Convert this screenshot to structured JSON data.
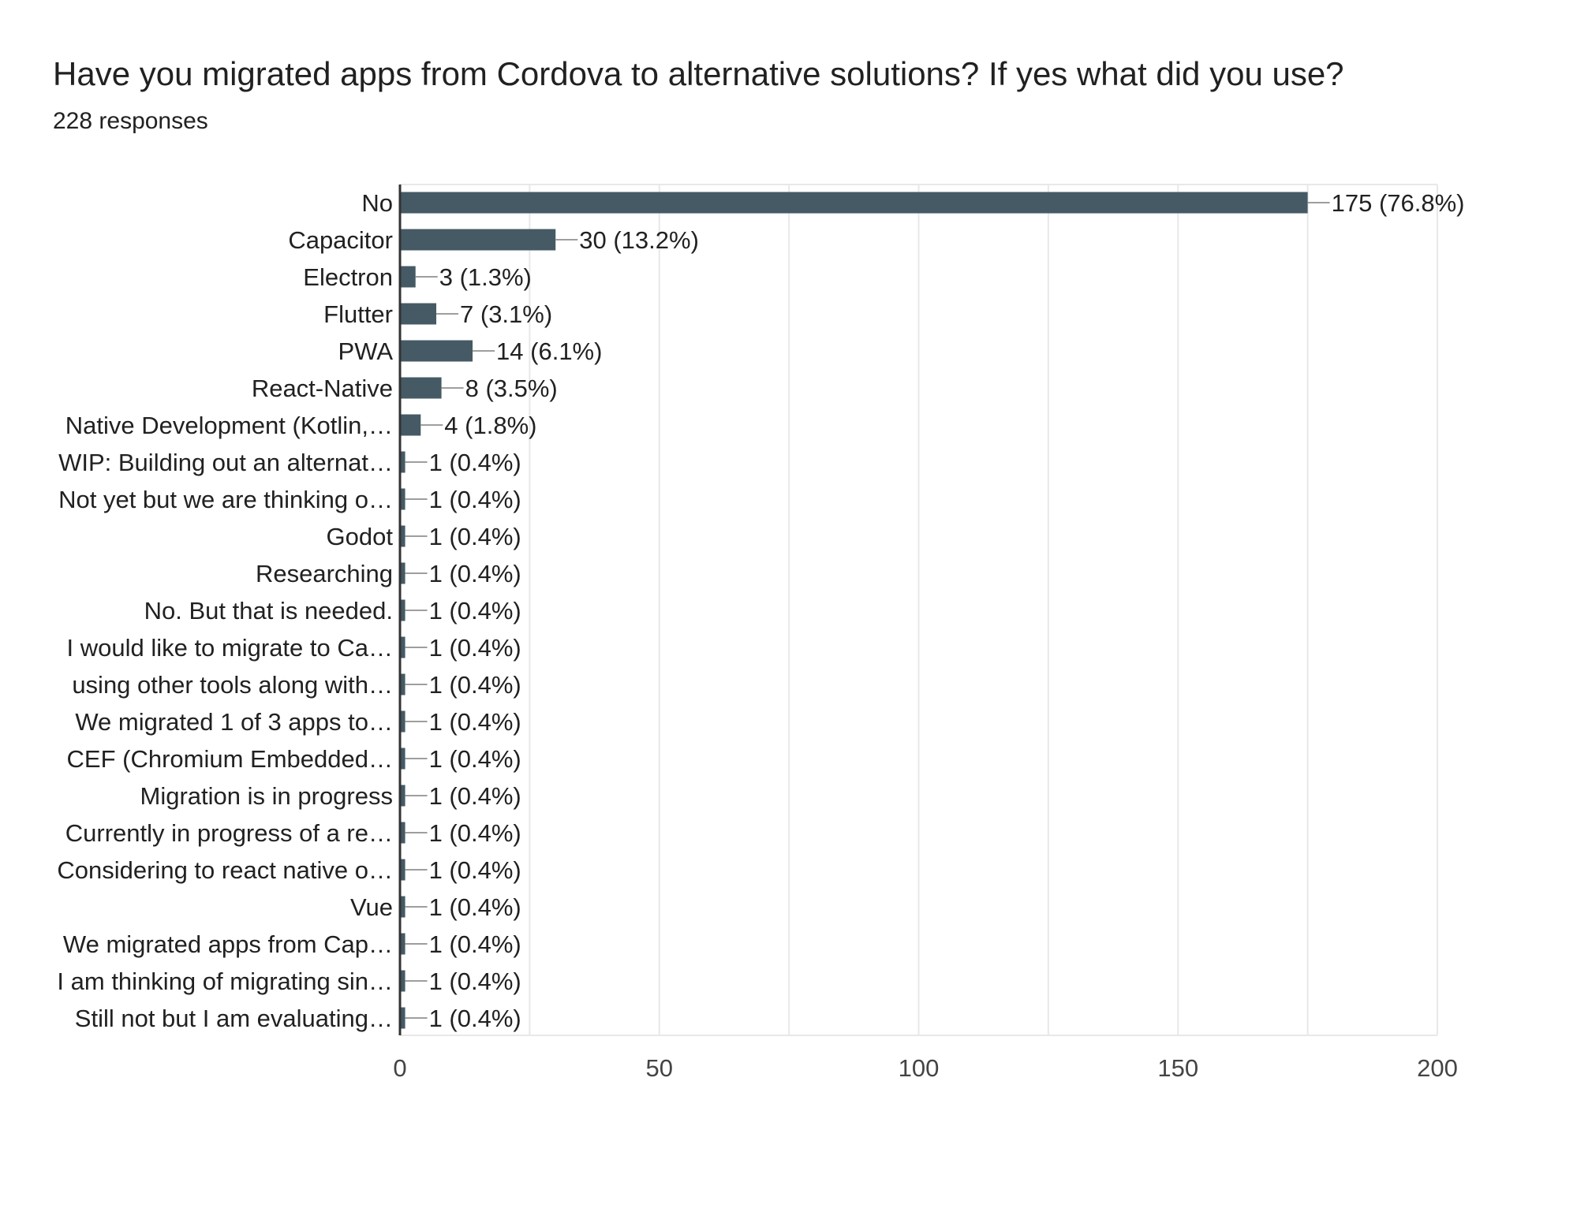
{
  "title": "Have you migrated apps from Cordova to alternative solutions? If yes what did you use?",
  "subtitle": "228 responses",
  "colors": {
    "bar": "#455a64",
    "grid": "#e8e8e8",
    "axis": "#333333",
    "text": "#212121",
    "tick": "#444444"
  },
  "chart_data": {
    "type": "bar",
    "orientation": "horizontal",
    "categories": [
      "No",
      "Capacitor",
      "Electron",
      "Flutter",
      "PWA",
      "React-Native",
      "Native Development (Kotlin,…",
      "WIP: Building out an alternat…",
      "Not yet but we are thinking o…",
      "Godot",
      "Researching",
      "No. But that is needed.",
      "I would like to migrate to Ca…",
      "using other tools along with…",
      "We migrated 1 of 3 apps to…",
      "CEF (Chromium Embedded…",
      "Migration is in progress",
      "Currently in progress of a re…",
      "Considering to react native o…",
      "Vue",
      "We migrated apps from Cap…",
      "I am thinking of migrating sin…",
      "Still not but I am evaluating…"
    ],
    "values": [
      175,
      30,
      3,
      7,
      14,
      8,
      4,
      1,
      1,
      1,
      1,
      1,
      1,
      1,
      1,
      1,
      1,
      1,
      1,
      1,
      1,
      1,
      1
    ],
    "data_labels": [
      "175 (76.8%)",
      "30 (13.2%)",
      "3 (1.3%)",
      "7 (3.1%)",
      "14 (6.1%)",
      "8 (3.5%)",
      "4 (1.8%)",
      "1 (0.4%)",
      "1 (0.4%)",
      "1 (0.4%)",
      "1 (0.4%)",
      "1 (0.4%)",
      "1 (0.4%)",
      "1 (0.4%)",
      "1 (0.4%)",
      "1 (0.4%)",
      "1 (0.4%)",
      "1 (0.4%)",
      "1 (0.4%)",
      "1 (0.4%)",
      "1 (0.4%)",
      "1 (0.4%)",
      "1 (0.4%)"
    ],
    "xlim": [
      0,
      200
    ],
    "xticks": [
      "0",
      "50",
      "100",
      "150",
      "200"
    ],
    "grid": true,
    "legend": "none"
  }
}
